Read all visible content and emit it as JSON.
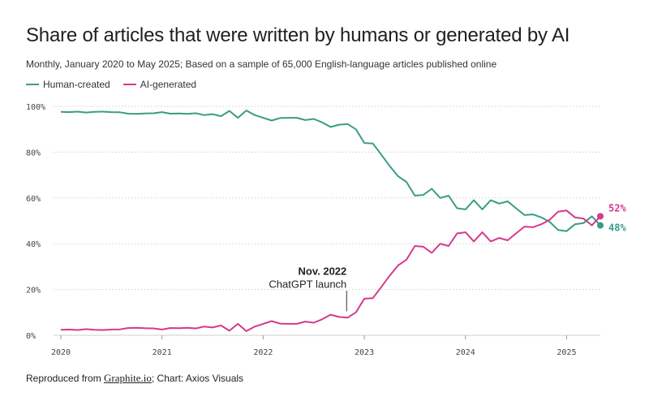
{
  "header": {
    "title": "Share of articles that were written by humans or generated by AI",
    "subtitle": "Monthly, January 2020 to May 2025; Based on a sample of 65,000 English-language articles published online"
  },
  "footer": {
    "prefix": "Reproduced from ",
    "link": "Graphite.io",
    "suffix": "; Chart: Axios Visuals"
  },
  "colors": {
    "human": "#3a9c86",
    "ai": "#d6398d",
    "grid": "#cfcfcf"
  },
  "chart_data": {
    "type": "line",
    "title": "Share of articles that were written by humans or generated by AI",
    "xlabel": "",
    "ylabel": "",
    "x_start": "2020-01",
    "x_end": "2025-05",
    "x_ticks": [
      "2020",
      "2021",
      "2022",
      "2023",
      "2024",
      "2025"
    ],
    "y_ticks": [
      "0%",
      "20%",
      "40%",
      "60%",
      "80%",
      "100%"
    ],
    "ylim": [
      0,
      100
    ],
    "grid": true,
    "legend_position": "top-left",
    "series": [
      {
        "name": "Human-created",
        "color": "#3a9c86",
        "end_label": "48%",
        "values": [
          97.6,
          97.5,
          97.7,
          97.3,
          97.6,
          97.7,
          97.5,
          97.4,
          96.8,
          96.7,
          96.9,
          97.0,
          97.5,
          96.8,
          96.9,
          96.7,
          97.0,
          96.2,
          96.6,
          95.7,
          98.0,
          95.0,
          98.2,
          96.2,
          95.0,
          93.8,
          94.9,
          95.0,
          95.0,
          94.0,
          94.5,
          93.0,
          91.0,
          92.0,
          92.3,
          90.0,
          84.0,
          83.8,
          79.0,
          74.0,
          69.5,
          67.0,
          61.0,
          61.3,
          64.0,
          60.0,
          61.0,
          55.5,
          55.0,
          59.0,
          55.0,
          59.0,
          57.5,
          58.5,
          55.5,
          52.5,
          52.8,
          51.5,
          49.5,
          46.0,
          45.5,
          48.5,
          49.0,
          52.0,
          48.0
        ]
      },
      {
        "name": "AI-generated",
        "color": "#d6398d",
        "end_label": "52%",
        "values": [
          2.4,
          2.5,
          2.3,
          2.7,
          2.4,
          2.3,
          2.5,
          2.6,
          3.2,
          3.3,
          3.1,
          3.0,
          2.5,
          3.2,
          3.1,
          3.3,
          3.0,
          3.8,
          3.4,
          4.3,
          2.0,
          5.0,
          1.8,
          3.8,
          5.0,
          6.2,
          5.1,
          5.0,
          5.0,
          6.0,
          5.5,
          7.0,
          9.0,
          8.0,
          7.7,
          10.0,
          16.0,
          16.2,
          21.0,
          26.0,
          30.5,
          33.0,
          39.0,
          38.7,
          36.0,
          40.0,
          39.0,
          44.5,
          45.0,
          41.0,
          45.0,
          41.0,
          42.5,
          41.5,
          44.5,
          47.5,
          47.2,
          48.5,
          50.5,
          54.0,
          54.5,
          51.5,
          51.0,
          48.0,
          52.0
        ]
      }
    ],
    "annotations": [
      {
        "x": "2022-11",
        "title": "Nov. 2022",
        "text": "ChatGPT launch"
      }
    ]
  }
}
